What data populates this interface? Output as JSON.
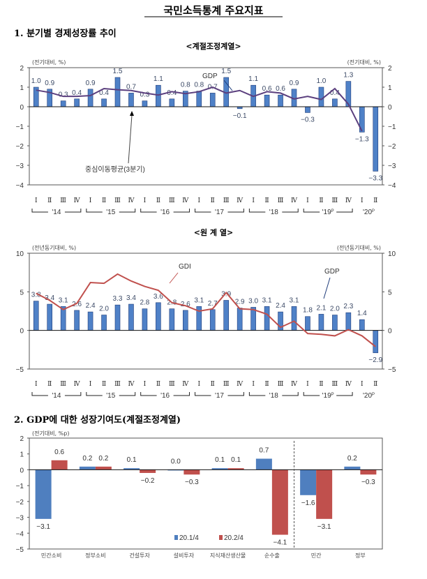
{
  "page_title": "국민소득통계 주요지표",
  "section1": {
    "title": "1. 분기별 경제성장률 추이",
    "sub1": "<계절조정계열>",
    "sub2": "<원 계 열>"
  },
  "section2": {
    "title": "2. GDP에 대한 성장기여도(계절조정계열)"
  },
  "quarters": [
    "Ⅰ",
    "Ⅱ",
    "Ⅲ",
    "Ⅳ"
  ],
  "years": [
    {
      "label": "'14",
      "sup": ""
    },
    {
      "label": "'15",
      "sup": ""
    },
    {
      "label": "'16",
      "sup": ""
    },
    {
      "label": "'17",
      "sup": ""
    },
    {
      "label": "'18",
      "sup": ""
    },
    {
      "label": "'19",
      "sup": "P"
    },
    {
      "label": "'20",
      "sup": "P"
    }
  ],
  "chart_data": [
    {
      "type": "bar",
      "subtitle": "<계절조정계열>",
      "ylabel_left": "(전기대비, %)",
      "ylabel_right": "(전기대비, %)",
      "ylim": [
        -4,
        2
      ],
      "yticks": [
        2,
        1,
        0,
        -1,
        -2,
        -3,
        -4
      ],
      "series": [
        {
          "name": "GDP",
          "type": "bar",
          "color": "#4f81c7",
          "values": [
            1.0,
            0.9,
            0.3,
            0.4,
            0.9,
            0.4,
            1.5,
            0.7,
            0.3,
            1.1,
            0.4,
            0.8,
            0.8,
            0.7,
            1.5,
            -0.1,
            1.1,
            0.6,
            0.6,
            0.9,
            -0.3,
            1.0,
            0.4,
            1.3,
            -1.3,
            -3.3
          ]
        },
        {
          "name": "중심이동평균(3분기)",
          "type": "line",
          "color": "#5b3f7e",
          "values": [
            0.85,
            0.73,
            0.53,
            0.53,
            0.57,
            0.93,
            0.87,
            0.83,
            0.7,
            0.6,
            0.77,
            0.67,
            0.77,
            1.0,
            0.7,
            0.83,
            0.53,
            0.77,
            0.7,
            0.4,
            0.53,
            0.37,
            0.93,
            0.13,
            -1.25
          ]
        }
      ]
    },
    {
      "type": "bar",
      "subtitle": "<원 계 열>",
      "ylabel_left": "(전년동기대비, %)",
      "ylabel_right": "(전년동기대비, %)",
      "ylim": [
        -5,
        10
      ],
      "yticks": [
        10,
        5,
        0,
        -5
      ],
      "series": [
        {
          "name": "GDP",
          "type": "bar",
          "color": "#4f81c7",
          "values": [
            3.8,
            3.4,
            3.1,
            2.6,
            2.4,
            2.0,
            3.3,
            3.4,
            2.8,
            3.6,
            2.8,
            2.6,
            3.1,
            2.7,
            3.9,
            2.9,
            3.0,
            3.1,
            2.4,
            3.1,
            1.8,
            2.1,
            2.0,
            2.3,
            1.4,
            -2.9
          ]
        },
        {
          "name": "GDI",
          "type": "line",
          "color": "#c0504d",
          "values": [
            4.8,
            3.9,
            2.7,
            3.5,
            6.2,
            6.1,
            7.3,
            6.4,
            5.7,
            5.2,
            3.6,
            3.2,
            2.5,
            2.8,
            4.9,
            2.8,
            2.7,
            2.1,
            0.4,
            1.2,
            -0.4,
            -0.5,
            -0.7,
            0.1,
            -0.7,
            -2.1
          ]
        }
      ]
    },
    {
      "type": "bar",
      "ylabel": "(전기대비, %p)",
      "ylim": [
        -5,
        2
      ],
      "yticks": [
        2,
        1,
        0,
        -1,
        -2,
        -3,
        -4,
        -5
      ],
      "legend_position": "bottom-center",
      "categories": [
        "민간소비",
        "정부소비",
        "건설투자",
        "설비투자",
        "지식재산생산물",
        "순수출",
        "민간",
        "정부"
      ],
      "series": [
        {
          "name": "20.1/4",
          "color": "#4f7fbf",
          "values": [
            -3.1,
            0.2,
            0.1,
            0.0,
            0.1,
            0.7,
            -1.6,
            0.2
          ]
        },
        {
          "name": "20.2/4",
          "color": "#c0504d",
          "values": [
            0.6,
            0.2,
            -0.2,
            -0.3,
            0.1,
            -4.1,
            -3.1,
            -0.3
          ]
        }
      ]
    }
  ]
}
